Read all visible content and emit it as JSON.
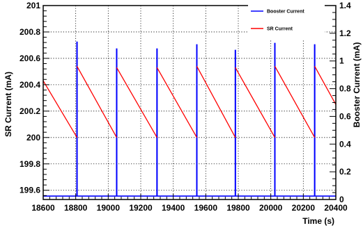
{
  "chart_data": {
    "type": "line",
    "xlabel": "Time (s)",
    "ylabel_left": "SR Current (mA)",
    "ylabel_right": "Booster Current (mA)",
    "xlim": [
      18600,
      20400
    ],
    "ylim_left": [
      199.53,
      201.0
    ],
    "ylim_right": [
      0.0,
      1.4
    ],
    "x_ticks": [
      "18600",
      "18800",
      "19000",
      "19200",
      "19400",
      "19600",
      "19800",
      "20000",
      "20200",
      "20400"
    ],
    "y_left_ticks": [
      "199.6",
      "199.8",
      "200",
      "200.2",
      "200.4",
      "200.6",
      "200.8",
      "201"
    ],
    "y_right_ticks": [
      "0",
      "0.2",
      "0.4",
      "0.6",
      "0.8",
      "1",
      "1.2",
      "1.4"
    ],
    "grid": true,
    "legend_position": "top-right",
    "series": [
      {
        "name": "Booster Current",
        "color": "#0000ff",
        "axis": "right",
        "baseline": 0.025,
        "spikes": [
          {
            "x": 18808,
            "y": 1.14
          },
          {
            "x": 19052,
            "y": 1.09
          },
          {
            "x": 19300,
            "y": 1.09
          },
          {
            "x": 19545,
            "y": 1.12
          },
          {
            "x": 19782,
            "y": 1.08
          },
          {
            "x": 20025,
            "y": 1.13
          },
          {
            "x": 20270,
            "y": 1.12
          }
        ]
      },
      {
        "name": "SR Current",
        "color": "#ff0000",
        "axis": "left",
        "points": [
          [
            18600,
            200.43
          ],
          [
            18808,
            200.0
          ],
          [
            18808,
            200.54
          ],
          [
            19052,
            200.0
          ],
          [
            19052,
            200.53
          ],
          [
            19300,
            200.0
          ],
          [
            19300,
            200.53
          ],
          [
            19545,
            200.0
          ],
          [
            19545,
            200.54
          ],
          [
            19782,
            200.0
          ],
          [
            19782,
            200.53
          ],
          [
            20025,
            200.0
          ],
          [
            20025,
            200.54
          ],
          [
            20270,
            200.0
          ],
          [
            20270,
            200.54
          ],
          [
            20400,
            200.25
          ]
        ]
      }
    ]
  }
}
